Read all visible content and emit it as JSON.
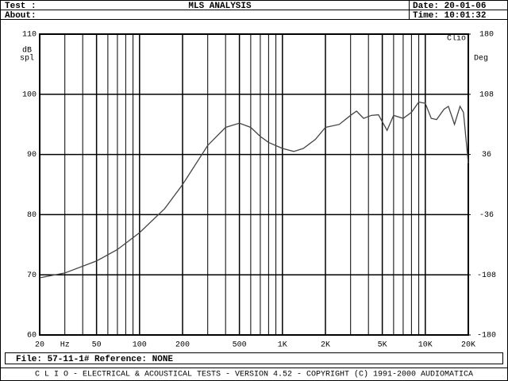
{
  "header": {
    "test": "Test :",
    "about": "About:",
    "title": "MLS ANALYSIS",
    "date": "Date: 20-01-06",
    "time": "Time: 10:01:32"
  },
  "chart_data": {
    "type": "line",
    "color": "#444444",
    "y_label": [
      "dB",
      "spl"
    ],
    "y2_label": "Deg",
    "x_unit": {
      "value": 30,
      "label": "Hz"
    },
    "annotation": "Clio",
    "log_x": true,
    "grid": true,
    "xlim": [
      20,
      20000
    ],
    "xticks": [
      20,
      50,
      100,
      200,
      500,
      {
        "value": 1000,
        "label": "1K"
      },
      {
        "value": 2000,
        "label": "2K"
      },
      {
        "value": 5000,
        "label": "5K"
      },
      {
        "value": 10000,
        "label": "10K"
      },
      {
        "value": 20000,
        "label": "20K"
      }
    ],
    "xminor": [
      30,
      40,
      60,
      70,
      80,
      90,
      300,
      400,
      600,
      700,
      800,
      900,
      3000,
      4000,
      6000,
      7000,
      8000,
      9000
    ],
    "ylim": [
      60,
      110
    ],
    "yticks": [
      60,
      70,
      80,
      90,
      100,
      110
    ],
    "y2lim": [
      -180,
      180
    ],
    "y2ticks": [
      -180,
      -108,
      -36,
      36,
      108,
      180
    ],
    "x": [
      20,
      30,
      50,
      70,
      100,
      150,
      200,
      300,
      400,
      500,
      600,
      700,
      800,
      1000,
      1200,
      1400,
      1700,
      2000,
      2500,
      3000,
      3300,
      3700,
      4200,
      4700,
      5400,
      6000,
      7000,
      8000,
      9000,
      10000,
      11000,
      12000,
      13500,
      14500,
      15500,
      16000,
      17500,
      18500,
      20000
    ],
    "values": [
      69.5,
      70.3,
      72.3,
      74.2,
      77,
      81,
      85,
      91.5,
      94.5,
      95.2,
      94.5,
      93,
      92,
      91,
      90.5,
      91,
      92.5,
      94.5,
      95,
      96.5,
      97.2,
      96,
      96.5,
      96.6,
      94,
      96.5,
      96,
      97,
      98.7,
      98.5,
      96,
      95.8,
      97.5,
      98,
      96,
      95,
      98,
      97,
      88.5
    ]
  },
  "footer": {
    "file": "File: 57-11-1# Reference: NONE",
    "credits": "C L I O  -  ELECTRICAL & ACOUSTICAL TESTS  -  VERSION 4.52  -  COPYRIGHT (C) 1991-2000 AUDIOMATICA"
  }
}
